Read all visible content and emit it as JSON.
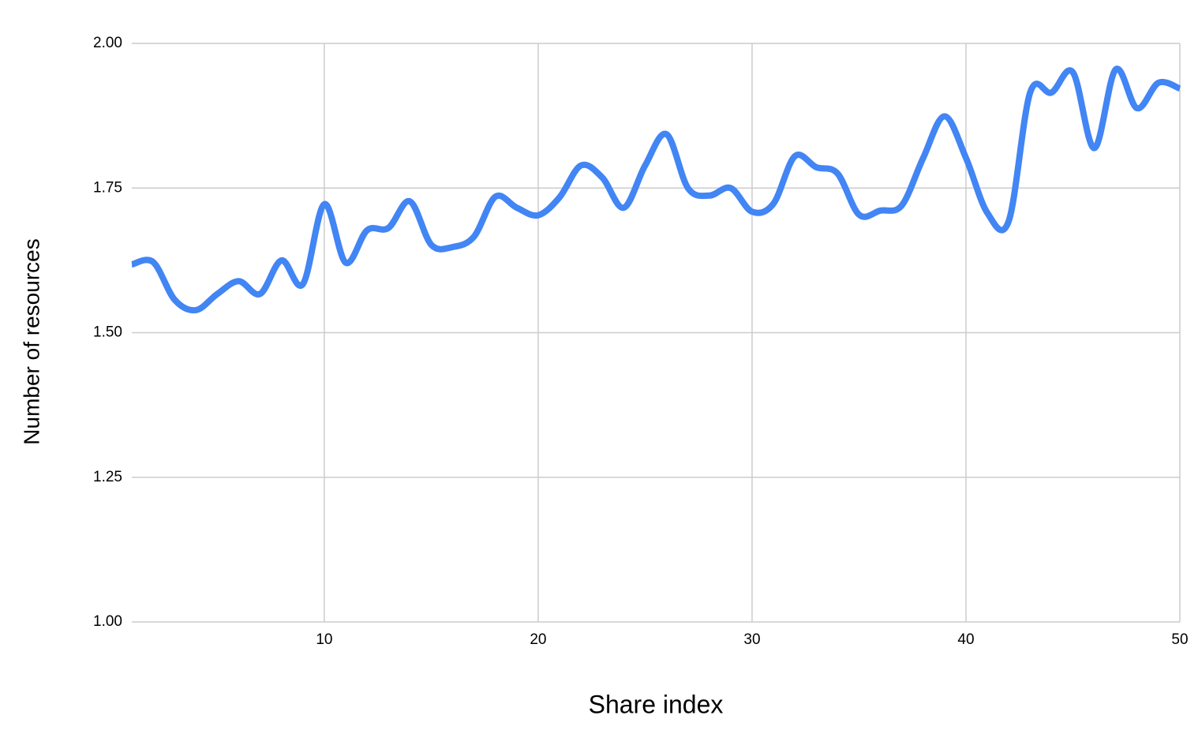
{
  "chart_data": {
    "type": "line",
    "x_label": "Share index",
    "y_label": "Number of resources",
    "x": [
      1,
      2,
      3,
      4,
      5,
      6,
      7,
      8,
      9,
      10,
      11,
      12,
      13,
      14,
      15,
      16,
      17,
      18,
      19,
      20,
      21,
      22,
      23,
      24,
      25,
      26,
      27,
      28,
      29,
      30,
      31,
      32,
      33,
      34,
      35,
      36,
      37,
      38,
      39,
      40,
      41,
      42,
      43,
      44,
      45,
      46,
      47,
      48,
      49,
      50
    ],
    "series": [
      {
        "name": "Number of resources",
        "color": "#4285f4",
        "values": [
          1.618,
          1.622,
          1.557,
          1.539,
          1.567,
          1.589,
          1.567,
          1.625,
          1.584,
          1.722,
          1.621,
          1.677,
          1.681,
          1.727,
          1.652,
          1.648,
          1.666,
          1.735,
          1.716,
          1.703,
          1.734,
          1.789,
          1.768,
          1.716,
          1.789,
          1.843,
          1.75,
          1.737,
          1.75,
          1.709,
          1.723,
          1.805,
          1.786,
          1.775,
          1.704,
          1.711,
          1.72,
          1.802,
          1.874,
          1.802,
          1.707,
          1.693,
          1.915,
          1.915,
          1.95,
          1.819,
          1.955,
          1.888,
          1.932,
          1.922
        ]
      }
    ],
    "xlim": [
      1,
      50
    ],
    "xticks": [
      10,
      20,
      30,
      40,
      50
    ],
    "ylim": [
      1,
      2
    ],
    "yticks": [
      {
        "value": 1,
        "label": "1.00"
      },
      {
        "value": 1.25,
        "label": "1.25"
      },
      {
        "value": 1.5,
        "label": "1.50"
      },
      {
        "value": 1.75,
        "label": "1.75"
      },
      {
        "value": 2,
        "label": "2.00"
      }
    ],
    "grid": true
  }
}
